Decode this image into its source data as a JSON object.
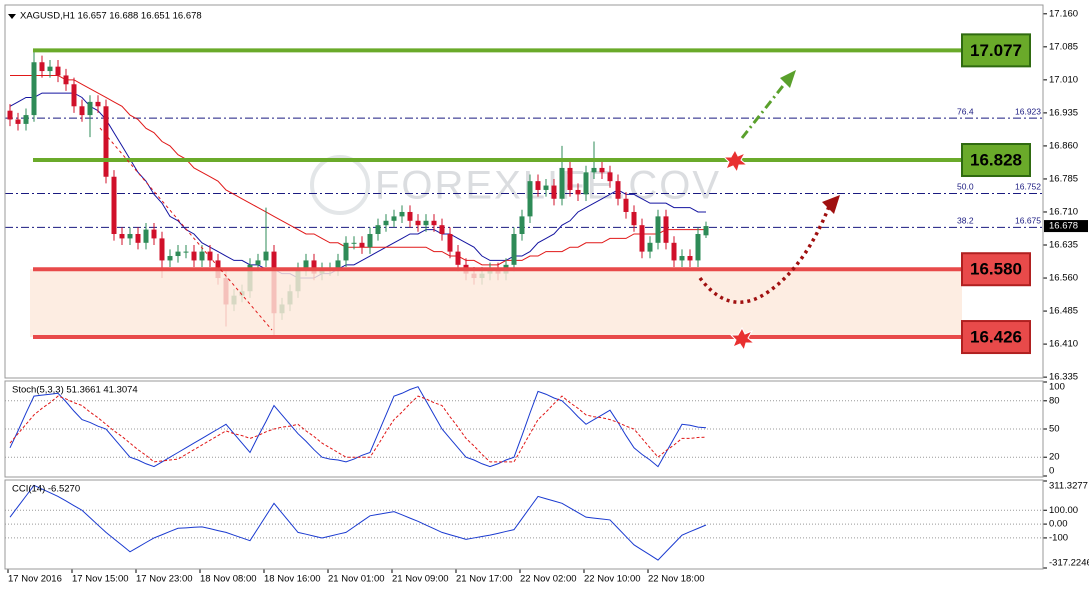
{
  "chart_data": [
    {
      "type": "candlestick",
      "title": "XAGUSD,H1 16.657 16.688 16.651 16.678",
      "watermark": "FOREXLIFE.COV",
      "categories": [
        "17 Nov 2016",
        null,
        null,
        null,
        null,
        null,
        null,
        null,
        "17 Nov 15:00",
        null,
        null,
        null,
        null,
        null,
        null,
        null,
        "17 Nov 23:00",
        null,
        null,
        null,
        null,
        null,
        null,
        null,
        "18 Nov 08:00",
        null,
        null,
        null,
        null,
        null,
        null,
        null,
        "18 Nov 16:00",
        null,
        null,
        null,
        null,
        null,
        null,
        null,
        "21 Nov 01:00",
        null,
        null,
        null,
        null,
        null,
        null,
        null,
        "21 Nov 09:00",
        null,
        null,
        null,
        null,
        null,
        null,
        null,
        "21 Nov 17:00",
        null,
        null,
        null,
        null,
        null,
        null,
        null,
        "22 Nov 02:00",
        null,
        null,
        null,
        null,
        null,
        null,
        null,
        "22 Nov 10:00",
        null,
        null,
        null,
        null,
        null,
        null,
        null,
        "22 Nov 18:00",
        null,
        null,
        null,
        null,
        null,
        null,
        null
      ],
      "open": [
        16.94,
        16.92,
        16.91,
        16.93,
        17.05,
        17.03,
        17.04,
        17.02,
        17.0,
        16.95,
        16.93,
        16.96,
        16.95,
        16.79,
        16.66,
        16.65,
        16.66,
        16.64,
        16.67,
        16.65,
        16.6,
        16.61,
        16.62,
        16.62,
        16.6,
        16.62,
        16.6,
        16.56,
        16.5,
        16.52,
        16.53,
        16.59,
        16.6,
        16.62,
        16.48,
        16.5,
        16.53,
        16.58,
        16.6,
        16.57,
        16.58,
        16.58,
        16.6,
        16.64,
        16.64,
        16.63,
        16.66,
        16.68,
        16.69,
        16.7,
        16.71,
        16.69,
        16.68,
        16.69,
        16.68,
        16.66,
        16.62,
        16.59,
        16.57,
        16.56,
        16.57,
        16.58,
        16.57,
        16.59,
        16.66,
        16.7,
        16.78,
        16.76,
        16.77,
        16.74,
        16.81,
        16.76,
        16.75,
        16.8,
        16.81,
        16.8,
        16.78,
        16.74,
        16.71,
        16.68,
        16.62,
        16.64,
        16.7,
        16.64,
        16.6,
        16.61,
        16.6,
        16.657
      ],
      "high": [
        16.955,
        16.935,
        16.945,
        17.08,
        17.065,
        17.055,
        17.055,
        17.035,
        17.015,
        16.965,
        16.975,
        16.975,
        16.965,
        16.805,
        16.675,
        16.675,
        16.675,
        16.685,
        16.685,
        16.665,
        16.625,
        16.635,
        16.635,
        16.635,
        16.635,
        16.635,
        16.615,
        16.575,
        16.535,
        16.545,
        16.605,
        16.615,
        16.72,
        16.635,
        16.515,
        16.545,
        16.595,
        16.615,
        16.615,
        16.595,
        16.595,
        16.615,
        16.655,
        16.655,
        16.655,
        16.675,
        16.695,
        16.705,
        16.715,
        16.725,
        16.725,
        16.705,
        16.705,
        16.705,
        16.695,
        16.675,
        16.635,
        16.605,
        16.585,
        16.585,
        16.595,
        16.595,
        16.605,
        16.675,
        16.715,
        16.795,
        16.795,
        16.785,
        16.785,
        16.86,
        16.825,
        16.775,
        16.815,
        16.87,
        16.825,
        16.815,
        16.795,
        16.755,
        16.725,
        16.695,
        16.655,
        16.715,
        16.715,
        16.655,
        16.625,
        16.625,
        16.675,
        16.688
      ],
      "low": [
        16.905,
        16.895,
        16.895,
        16.915,
        17.015,
        17.015,
        17.005,
        16.985,
        16.935,
        16.915,
        16.88,
        16.935,
        16.775,
        16.645,
        16.635,
        16.635,
        16.625,
        16.625,
        16.635,
        16.56,
        16.585,
        16.595,
        16.605,
        16.585,
        16.585,
        16.585,
        16.545,
        16.45,
        16.485,
        16.505,
        16.515,
        16.575,
        16.585,
        16.43,
        16.465,
        16.485,
        16.515,
        16.565,
        16.555,
        16.555,
        16.565,
        16.565,
        16.585,
        16.625,
        16.615,
        16.615,
        16.645,
        16.665,
        16.675,
        16.685,
        16.675,
        16.665,
        16.665,
        16.665,
        16.645,
        16.605,
        16.575,
        16.555,
        16.545,
        16.545,
        16.555,
        16.555,
        16.555,
        16.575,
        16.645,
        16.685,
        16.745,
        16.745,
        16.725,
        16.725,
        16.745,
        16.735,
        16.735,
        16.785,
        16.785,
        16.765,
        16.725,
        16.695,
        16.665,
        16.605,
        16.605,
        16.625,
        16.625,
        16.585,
        16.585,
        16.585,
        16.585,
        16.651
      ],
      "close": [
        16.92,
        16.91,
        16.93,
        17.05,
        17.03,
        17.04,
        17.02,
        17.0,
        16.95,
        16.93,
        16.96,
        16.95,
        16.79,
        16.66,
        16.65,
        16.66,
        16.64,
        16.67,
        16.65,
        16.6,
        16.61,
        16.62,
        16.62,
        16.6,
        16.62,
        16.6,
        16.56,
        16.5,
        16.52,
        16.53,
        16.59,
        16.6,
        16.62,
        16.48,
        16.5,
        16.53,
        16.58,
        16.6,
        16.57,
        16.58,
        16.58,
        16.6,
        16.64,
        16.64,
        16.63,
        16.66,
        16.68,
        16.69,
        16.7,
        16.71,
        16.69,
        16.68,
        16.69,
        16.68,
        16.66,
        16.62,
        16.59,
        16.57,
        16.56,
        16.57,
        16.58,
        16.57,
        16.59,
        16.66,
        16.7,
        16.78,
        16.76,
        16.77,
        16.74,
        16.81,
        16.76,
        16.75,
        16.8,
        16.81,
        16.8,
        16.78,
        16.74,
        16.71,
        16.68,
        16.62,
        16.64,
        16.7,
        16.64,
        16.6,
        16.61,
        16.6,
        16.66,
        16.678
      ],
      "up_color": "#2e8b57",
      "down_color": "#d0102a",
      "series": [
        {
          "color": "#1414a0",
          "values": [
            16.95,
            16.96,
            16.97,
            16.97,
            16.98,
            16.98,
            16.98,
            16.98,
            16.98,
            16.97,
            16.95,
            16.94,
            16.92,
            16.89,
            16.86,
            16.83,
            16.8,
            16.78,
            16.75,
            16.73,
            16.7,
            16.69,
            16.67,
            16.66,
            16.64,
            16.63,
            16.62,
            16.61,
            16.6,
            16.6,
            16.59,
            16.59,
            16.58,
            16.58,
            16.57,
            16.57,
            16.56,
            16.56,
            16.56,
            16.57,
            16.57,
            16.58,
            16.59,
            16.59,
            16.6,
            16.61,
            16.62,
            16.63,
            16.64,
            16.65,
            16.66,
            16.66,
            16.67,
            16.67,
            16.66,
            16.66,
            16.65,
            16.64,
            16.63,
            16.61,
            16.6,
            16.6,
            16.6,
            16.61,
            16.61,
            16.62,
            16.64,
            16.65,
            16.66,
            16.68,
            16.69,
            16.71,
            16.72,
            16.73,
            16.74,
            16.75,
            16.76,
            16.75,
            16.75,
            16.74,
            16.73,
            16.73,
            16.73,
            16.72,
            16.72,
            16.72,
            16.71,
            16.71
          ]
        },
        {
          "color": "#e01818",
          "values": [
            17.02,
            17.02,
            17.02,
            17.02,
            17.02,
            17.02,
            17.02,
            17.01,
            17.01,
            17.0,
            16.99,
            16.98,
            16.97,
            16.96,
            16.95,
            16.93,
            16.92,
            16.9,
            16.89,
            16.87,
            16.86,
            16.84,
            16.83,
            16.81,
            16.8,
            16.79,
            16.78,
            16.76,
            16.75,
            16.74,
            16.73,
            16.72,
            16.71,
            16.7,
            16.69,
            16.68,
            16.67,
            16.66,
            16.66,
            16.65,
            16.64,
            16.64,
            16.63,
            16.63,
            16.63,
            16.63,
            16.63,
            16.63,
            16.63,
            16.63,
            16.63,
            16.63,
            16.63,
            16.62,
            16.62,
            16.61,
            16.61,
            16.6,
            16.6,
            16.59,
            16.59,
            16.59,
            16.6,
            16.6,
            16.6,
            16.61,
            16.61,
            16.62,
            16.62,
            16.62,
            16.63,
            16.63,
            16.64,
            16.64,
            16.64,
            16.65,
            16.65,
            16.65,
            16.66,
            16.66,
            16.66,
            16.66,
            16.67,
            16.67,
            16.67,
            16.67,
            16.67,
            16.67
          ]
        }
      ],
      "levels": [
        {
          "value": 17.077,
          "label": "17.077",
          "color": "#6aaa2a"
        },
        {
          "value": 16.828,
          "label": "16.828",
          "color": "#6aaa2a"
        },
        {
          "value": 16.58,
          "label": "16.580",
          "color": "#e84a4a"
        },
        {
          "value": 16.426,
          "label": "16.426",
          "color": "#e84a4a"
        }
      ],
      "fib_levels": [
        {
          "label": "76.4",
          "value": 16.923
        },
        {
          "label": "50.0",
          "value": 16.752
        },
        {
          "label": "38.2",
          "value": 16.675
        }
      ],
      "last_price": 16.678,
      "ylim": [
        16.333,
        17.18
      ],
      "yticks": [
        {
          "value": 17.16,
          "label": "17.160"
        },
        17.085,
        {
          "value": 17.01,
          "label": "17.010"
        },
        16.935,
        {
          "value": 16.86,
          "label": "16.860"
        },
        16.785,
        {
          "value": 16.71,
          "label": "16.710"
        },
        16.635,
        {
          "value": 16.56,
          "label": "16.560"
        },
        16.485,
        {
          "value": 16.41,
          "label": "16.410"
        },
        16.335
      ]
    },
    {
      "type": "line",
      "title": "Stoch(5,3,3) 51.3661 41.3074",
      "grid": true,
      "series": [
        {
          "color": "#1a3ad0",
          "values": [
            30,
            48,
            67,
            85,
            86,
            87,
            88,
            79,
            69,
            60,
            57,
            53,
            50,
            40,
            30,
            20,
            17,
            13,
            10,
            15,
            20,
            25,
            30,
            35,
            40,
            45,
            50,
            55,
            45,
            35,
            25,
            42,
            58,
            75,
            65,
            55,
            45,
            37,
            28,
            20,
            18,
            17,
            15,
            18,
            22,
            25,
            45,
            65,
            85,
            88,
            92,
            95,
            80,
            65,
            50,
            40,
            30,
            20,
            17,
            13,
            10,
            13,
            17,
            20,
            43,
            67,
            90,
            87,
            83,
            80,
            72,
            63,
            55,
            60,
            65,
            70,
            57,
            43,
            30,
            23,
            17,
            10,
            25,
            40,
            55,
            54,
            52,
            51.3661
          ]
        },
        {
          "color": "#e01818",
          "dashed": true,
          "values": [
            35,
            45,
            55,
            65,
            72,
            78,
            85,
            82,
            78,
            75,
            68,
            62,
            55,
            48,
            42,
            35,
            28,
            22,
            15,
            16,
            17,
            18,
            23,
            28,
            33,
            38,
            43,
            48,
            45,
            43,
            40,
            43,
            47,
            50,
            52,
            53,
            55,
            48,
            42,
            35,
            30,
            25,
            20,
            20,
            20,
            20,
            33,
            47,
            60,
            68,
            77,
            85,
            82,
            78,
            75,
            63,
            52,
            40,
            32,
            23,
            15,
            15,
            15,
            15,
            30,
            45,
            60,
            68,
            77,
            85,
            78,
            72,
            65,
            63,
            62,
            60,
            57,
            53,
            50,
            40,
            30,
            20,
            27,
            33,
            40,
            40,
            41,
            41.3074
          ]
        }
      ],
      "ylim": [
        0,
        100
      ],
      "yticks": [
        100,
        80,
        50,
        20,
        0
      ]
    },
    {
      "type": "line",
      "title": "CCI(14) -6.5270",
      "grid": true,
      "series": [
        {
          "color": "#1a3ad0",
          "values": [
            50,
            127,
            203,
            280,
            253,
            227,
            200,
            167,
            133,
            100,
            47,
            -7,
            -60,
            -107,
            -153,
            -200,
            -167,
            -133,
            -100,
            -77,
            -53,
            -30,
            -27,
            -23,
            -20,
            -33,
            -47,
            -60,
            -80,
            -100,
            -120,
            -30,
            60,
            150,
            80,
            10,
            -60,
            -73,
            -87,
            -100,
            -87,
            -73,
            -60,
            -20,
            20,
            60,
            70,
            80,
            90,
            67,
            43,
            20,
            -7,
            -33,
            -60,
            -77,
            -93,
            -110,
            -100,
            -90,
            -80,
            -67,
            -53,
            -40,
            40,
            120,
            200,
            183,
            167,
            150,
            117,
            83,
            50,
            43,
            37,
            30,
            -30,
            -90,
            -150,
            -187,
            -223,
            -260,
            -200,
            -140,
            -80,
            -55,
            -31,
            -6.527
          ]
        }
      ],
      "ylim": [
        -317.2246,
        311.3277
      ],
      "yticks": [
        311.3277,
        {
          "value": 100,
          "label": "100.00"
        },
        {
          "value": 0,
          "label": "0.00"
        },
        -100,
        -317.2246
      ]
    }
  ]
}
